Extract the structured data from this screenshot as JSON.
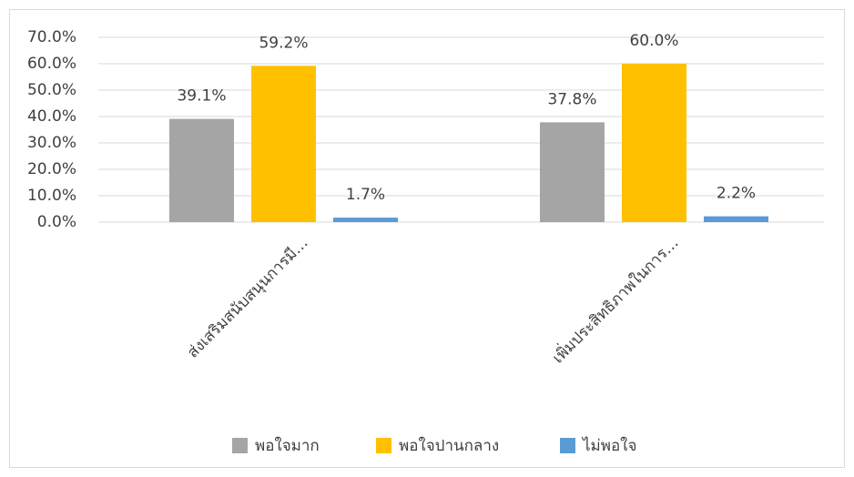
{
  "chart_data": {
    "type": "bar",
    "categories": [
      "ส่งเสริมสนับสนุนการมี…",
      "เพิ่มประสิทธิภาพในการ…"
    ],
    "series": [
      {
        "name": "พอใจมาก",
        "color": "#a5a5a5",
        "values": [
          39.1,
          37.8
        ],
        "value_labels": [
          "39.1%",
          "37.8%"
        ]
      },
      {
        "name": "พอใจปานกลาง",
        "color": "#ffc000",
        "values": [
          59.2,
          60.0
        ],
        "value_labels": [
          "59.2%",
          "60.0%"
        ]
      },
      {
        "name": "ไม่พอใจ",
        "color": "#5b9bd5",
        "values": [
          1.7,
          2.2
        ],
        "value_labels": [
          "1.7%",
          "2.2%"
        ]
      }
    ],
    "ylim": [
      0,
      70
    ],
    "yticks": [
      {
        "value": 0,
        "label": "0.0%"
      },
      {
        "value": 10,
        "label": "10.0%"
      },
      {
        "value": 20,
        "label": "20.0%"
      },
      {
        "value": 30,
        "label": "30.0%"
      },
      {
        "value": 40,
        "label": "40.0%"
      },
      {
        "value": 50,
        "label": "50.0%"
      },
      {
        "value": 60,
        "label": "60.0%"
      },
      {
        "value": 70,
        "label": "70.0%"
      }
    ],
    "grid": true,
    "legend": "bottom"
  }
}
